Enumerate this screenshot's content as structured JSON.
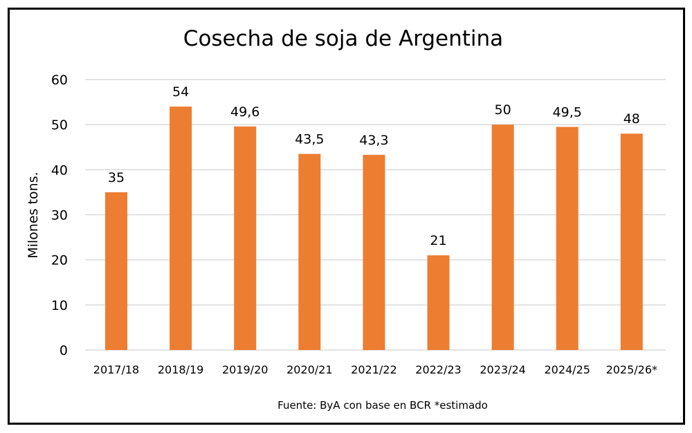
{
  "chart_data": {
    "type": "bar",
    "title": "Cosecha de soja de Argentina",
    "xlabel": "",
    "ylabel": "Milones tons.",
    "ylim": [
      0,
      60
    ],
    "yticks": [
      0,
      10,
      20,
      30,
      40,
      50,
      60
    ],
    "grid": true,
    "categories": [
      "2017/18",
      "2018/19",
      "2019/20",
      "2020/21",
      "2021/22",
      "2022/23",
      "2023/24",
      "2024/25",
      "2025/26*"
    ],
    "values": [
      35,
      54,
      49.6,
      43.5,
      43.3,
      21,
      50,
      49.5,
      48
    ],
    "data_labels": [
      "35",
      "54",
      "49,6",
      "43,5",
      "43,3",
      "21",
      "50",
      "49,5",
      "48"
    ],
    "bar_color": "#ED7D31",
    "footnote": "Fuente: ByA con base en BCR *estimado"
  }
}
